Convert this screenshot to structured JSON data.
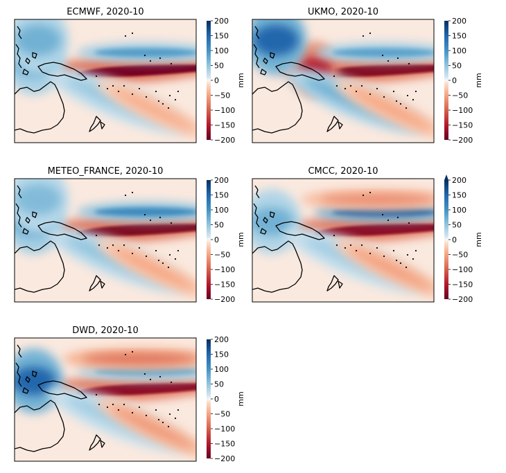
{
  "chart_data": [
    {
      "type": "heatmap",
      "title": "ECMWF, 2020-10",
      "colorbar": {
        "label": "mm",
        "ticks": [
          200,
          150,
          100,
          50,
          0,
          -50,
          -100,
          -150,
          -200
        ],
        "range": [
          -200,
          200
        ],
        "extend": "neither",
        "cmap": "RdBu"
      },
      "anomaly_features": [
        {
          "name": "equatorial-dry-band",
          "peak": -190
        },
        {
          "name": "north-wet-band",
          "peak": 90
        },
        {
          "name": "maritime-continent-wet",
          "peak": 80
        },
        {
          "name": "spcz-wet",
          "peak": 45
        },
        {
          "name": "southeast-dry-tongue",
          "peak": -45
        },
        {
          "name": "northwest-wet",
          "peak": 70
        }
      ]
    },
    {
      "type": "heatmap",
      "title": "UKMO, 2020-10",
      "colorbar": {
        "label": "mm",
        "ticks": [
          200,
          150,
          100,
          50,
          0,
          -50,
          -100,
          -150,
          -200
        ],
        "range": [
          -200,
          200
        ],
        "extend": "neither",
        "cmap": "RdBu"
      },
      "anomaly_features": [
        {
          "name": "equatorial-dry-band",
          "peak": -180
        },
        {
          "name": "west-dry-blob",
          "peak": -150
        },
        {
          "name": "north-wet-band",
          "peak": 85
        },
        {
          "name": "northwest-wet",
          "peak": 150
        },
        {
          "name": "spcz-wet",
          "peak": 70
        },
        {
          "name": "southeast-dry-tongue",
          "peak": -50
        }
      ]
    },
    {
      "type": "heatmap",
      "title": "METEO_FRANCE, 2020-10",
      "colorbar": {
        "label": "mm",
        "ticks": [
          200,
          150,
          100,
          50,
          0,
          -50,
          -100,
          -150,
          -200
        ],
        "range": [
          -200,
          200
        ],
        "extend": "neither",
        "cmap": "RdBu"
      },
      "anomaly_features": [
        {
          "name": "equatorial-dry-band",
          "peak": -185
        },
        {
          "name": "north-wet-band",
          "peak": 110
        },
        {
          "name": "maritime-continent-wet",
          "peak": 90
        },
        {
          "name": "spcz-wet",
          "peak": 50
        },
        {
          "name": "southeast-dry-tongue",
          "peak": -50
        },
        {
          "name": "northwest-wet",
          "peak": 60
        }
      ]
    },
    {
      "type": "heatmap",
      "title": "CMCC, 2020-10",
      "colorbar": {
        "label": "mm",
        "ticks": [
          200,
          150,
          100,
          50,
          0,
          -50,
          -100,
          -150,
          -200
        ],
        "range": [
          -200,
          200
        ],
        "extend": "max",
        "cmap": "RdBu"
      },
      "anomaly_features": [
        {
          "name": "equatorial-dry-band",
          "peak": -175
        },
        {
          "name": "north-wet-band",
          "peak": 160
        },
        {
          "name": "north-dry-band",
          "peak": -70
        },
        {
          "name": "maritime-continent-wet",
          "peak": 70
        },
        {
          "name": "spcz-wet",
          "peak": 40
        },
        {
          "name": "southeast-dry-tongue",
          "peak": -55
        }
      ]
    },
    {
      "type": "heatmap",
      "title": "DWD, 2020-10",
      "colorbar": {
        "label": "mm",
        "ticks": [
          200,
          150,
          100,
          50,
          0,
          -50,
          -100,
          -150,
          -200
        ],
        "range": [
          -200,
          200
        ],
        "extend": "neither",
        "cmap": "RdBu"
      },
      "anomaly_features": [
        {
          "name": "equatorial-dry-band",
          "peak": -175
        },
        {
          "name": "north-wet-band",
          "peak": 80
        },
        {
          "name": "north-dry-band",
          "peak": -90
        },
        {
          "name": "maritime-continent-wet",
          "peak": 150
        },
        {
          "name": "spcz-wet",
          "peak": 40
        },
        {
          "name": "southeast-dry-tongue",
          "peak": -60
        }
      ]
    }
  ]
}
